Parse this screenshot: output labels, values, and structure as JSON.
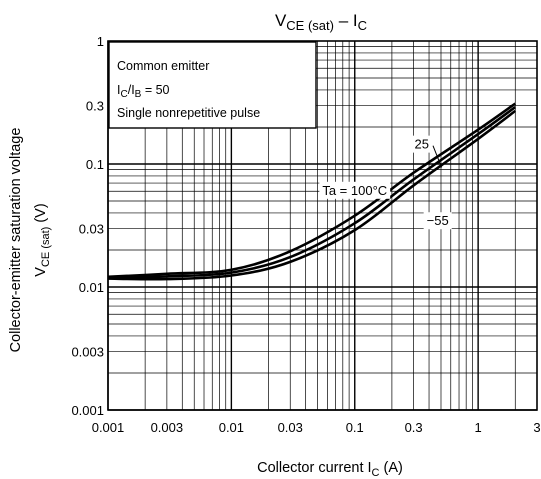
{
  "chart_data": {
    "type": "line",
    "title": {
      "main": "V",
      "main_sub": "CE (sat)",
      "dash": "–",
      "end": "I",
      "end_sub": "C"
    },
    "x_axis": {
      "scale": "log",
      "range": [
        0.001,
        3
      ],
      "ticks": [
        {
          "v": 0.001,
          "label": "0.001"
        },
        {
          "v": 0.003,
          "label": "0.003"
        },
        {
          "v": 0.01,
          "label": "0.01"
        },
        {
          "v": 0.03,
          "label": "0.03"
        },
        {
          "v": 0.1,
          "label": "0.1"
        },
        {
          "v": 0.3,
          "label": "0.3"
        },
        {
          "v": 1,
          "label": "1"
        },
        {
          "v": 3,
          "label": "3"
        }
      ],
      "label": {
        "text": "Collector current",
        "sym": "I",
        "sub": "C",
        "unit": "(A)"
      }
    },
    "y_axis": {
      "scale": "log",
      "range": [
        0.001,
        1
      ],
      "ticks": [
        {
          "v": 0.001,
          "label": "0.001"
        },
        {
          "v": 0.003,
          "label": "0.003"
        },
        {
          "v": 0.01,
          "label": "0.01"
        },
        {
          "v": 0.03,
          "label": "0.03"
        },
        {
          "v": 0.1,
          "label": "0.1"
        },
        {
          "v": 0.3,
          "label": "0.3"
        },
        {
          "v": 1,
          "label": "1"
        }
      ],
      "label": {
        "line1": "Collector-emitter saturation voltage",
        "sym": "V",
        "sub": "CE (sat)",
        "unit": "(V)"
      }
    },
    "grid": true,
    "conditions": {
      "line1": "Common emitter",
      "ratio_a": "I",
      "ratio_a_sub": "C",
      "ratio_slash": "/I",
      "ratio_b_sub": "B",
      "ratio_value": " = 50",
      "line3": "Single nonrepetitive pulse"
    },
    "series": [
      {
        "name": "Ta = 100°C",
        "x": [
          0.001,
          0.003,
          0.01,
          0.03,
          0.1,
          0.3,
          1,
          2
        ],
        "y": [
          0.0121,
          0.0128,
          0.0138,
          0.0195,
          0.038,
          0.085,
          0.19,
          0.31
        ]
      },
      {
        "name": "25",
        "x": [
          0.001,
          0.003,
          0.01,
          0.03,
          0.1,
          0.3,
          1,
          2
        ],
        "y": [
          0.0119,
          0.0122,
          0.0131,
          0.0175,
          0.033,
          0.075,
          0.175,
          0.29
        ]
      },
      {
        "name": "−55",
        "x": [
          0.001,
          0.003,
          0.01,
          0.03,
          0.1,
          0.3,
          1,
          2
        ],
        "y": [
          0.0117,
          0.0116,
          0.0124,
          0.016,
          0.029,
          0.067,
          0.16,
          0.27
        ]
      }
    ],
    "annotations": [
      {
        "series": 0,
        "text": "Ta = 100°C",
        "at": [
          0.1,
          0.0617
        ]
      },
      {
        "series": 1,
        "text": "25",
        "at": [
          0.5,
          0.1237
        ]
      },
      {
        "series": 2,
        "text": "−55",
        "at": [
          0.47,
          0.0349
        ]
      }
    ]
  }
}
